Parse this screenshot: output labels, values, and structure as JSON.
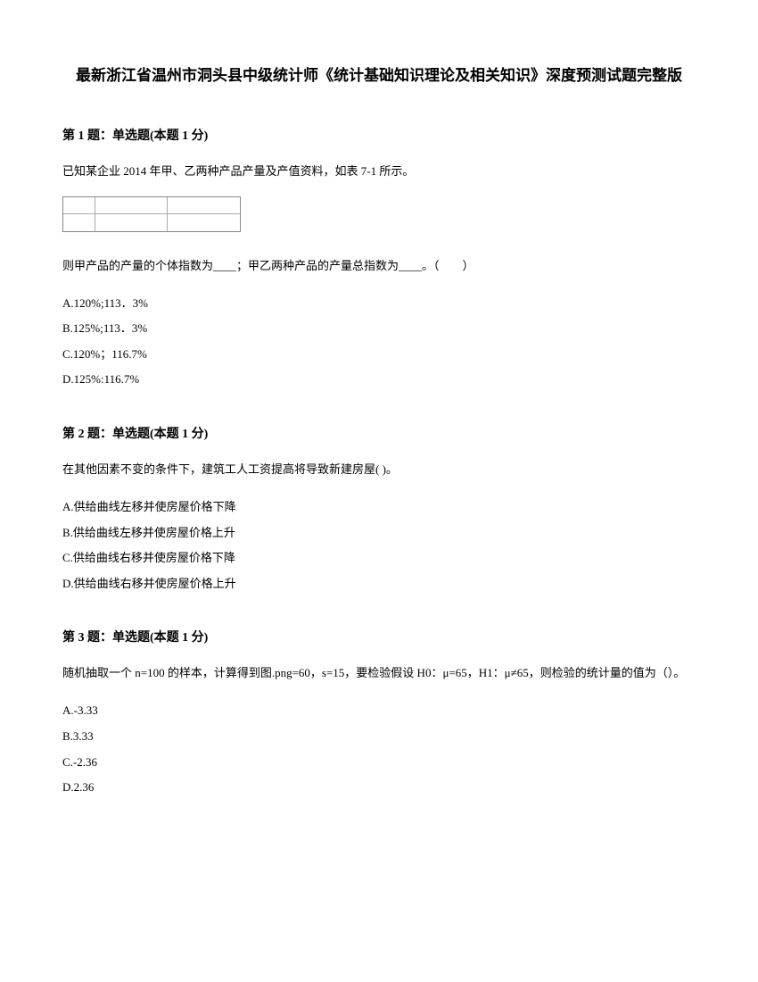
{
  "title": "最新浙江省温州市洞头县中级统计师《统计基础知识理论及相关知识》深度预测试题完整版",
  "questions": [
    {
      "header": "第 1 题：单选题(本题 1 分)",
      "text1": "已知某企业 2014 年甲、乙两种产品产量及产值资料，如表 7-1 所示。",
      "text2": "则甲产品的产量的个体指数为____；甲乙两种产品的产量总指数为____。（　　）",
      "hasTable": true,
      "options": [
        "A.120%;113．3%",
        "B.125%;113．3%",
        "C.120%；116.7%",
        "D.125%:116.7%"
      ]
    },
    {
      "header": "第 2 题：单选题(本题 1 分)",
      "text1": "在其他因素不变的条件下，建筑工人工资提高将导致新建房屋( )。",
      "hasTable": false,
      "options": [
        "A.供给曲线左移并使房屋价格下降",
        "B.供给曲线左移并使房屋价格上升",
        "C.供给曲线右移并使房屋价格下降",
        "D.供给曲线右移并使房屋价格上升"
      ]
    },
    {
      "header": "第 3 题：单选题(本题 1 分)",
      "text1": "随机抽取一个 n=100 的样本，计算得到图.png=60，s=15，要检验假设 H0：μ=65，H1：μ≠65，则检验的统计量的值为（）。",
      "hasTable": false,
      "options": [
        "A.-3.33",
        "B.3.33",
        "C.-2.36",
        "D.2.36"
      ]
    }
  ]
}
